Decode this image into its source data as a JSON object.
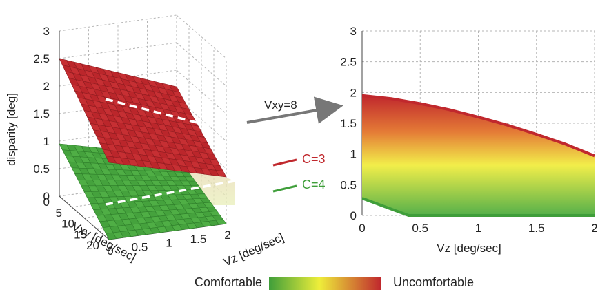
{
  "chart_data": [
    {
      "type": "surface3d",
      "zlabel": "disparity [deg]",
      "xlabel": "Vxy  [deg/sec]",
      "ylabel": "Vz  [deg/sec]",
      "xlim": [
        0,
        20
      ],
      "ylim": [
        0,
        2
      ],
      "zlim": [
        0,
        3
      ],
      "x_ticks": [
        "0",
        "5",
        "10",
        "15",
        "20"
      ],
      "y_ticks": [
        "0",
        "0.5",
        "1",
        "1.5",
        "2"
      ],
      "z_ticks": [
        "0",
        "0.5",
        "1",
        "1.5",
        "2",
        "2.5",
        "3"
      ],
      "grid": true,
      "series": [
        {
          "name": "C=3",
          "color": "#c0282d",
          "corners": {
            "x0_y0": 2.5,
            "x20_y0": 1.4,
            "x0_y2": 1.7,
            "x20_y2": 0.85
          }
        },
        {
          "name": "C=4",
          "color": "#3f9e3a",
          "corners": {
            "x0_y0": 0.95,
            "x20_y0": 0.0,
            "x0_y2": 0.45,
            "x20_y2": 0.0
          }
        }
      ],
      "slice_label": "Vxy=8"
    },
    {
      "type": "area",
      "xlabel": "Vz  [deg/sec]",
      "xlim": [
        0,
        2
      ],
      "ylim": [
        0,
        3
      ],
      "x_ticks": [
        "0",
        "0.5",
        "1",
        "1.5",
        "2"
      ],
      "y_ticks": [
        "0",
        "0.5",
        "1",
        "1.5",
        "2",
        "2.5",
        "3"
      ],
      "grid": true,
      "upper": {
        "x": [
          0,
          0.25,
          0.5,
          0.75,
          1.0,
          1.25,
          1.5,
          1.75,
          2.0
        ],
        "y": [
          1.95,
          1.9,
          1.82,
          1.72,
          1.6,
          1.47,
          1.32,
          1.16,
          0.97
        ]
      },
      "lower": {
        "x": [
          0,
          0.1,
          0.2,
          0.3,
          0.4,
          2.0
        ],
        "y": [
          0.28,
          0.21,
          0.14,
          0.07,
          0.0,
          0.0
        ]
      }
    }
  ],
  "colorbar": {
    "left_label": "Comfortable",
    "right_label": "Uncomfortable"
  },
  "colors": {
    "red": "#c0282d",
    "yellow": "#eeee3a",
    "green": "#3f9e3a"
  }
}
